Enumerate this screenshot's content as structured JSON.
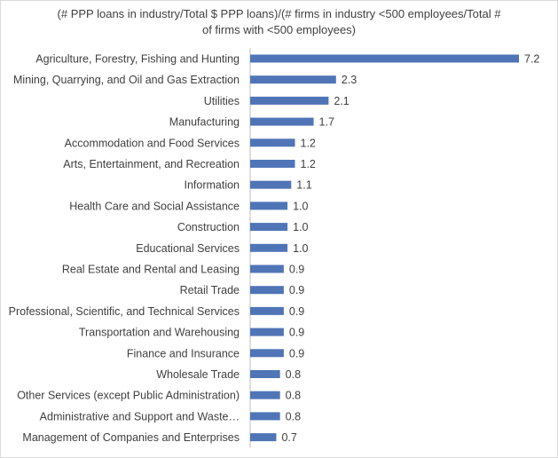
{
  "chart_data": {
    "type": "bar",
    "orientation": "horizontal",
    "title_line_1": "(# PPP loans in industry/Total $ PPP loans)/(# firms in industry <500 employees/Total #",
    "title_line_2": "of firms with <500 employees)",
    "categories": [
      "Agriculture, Forestry, Fishing and Hunting",
      "Mining, Quarrying, and Oil and Gas Extraction",
      "Utilities",
      "Manufacturing",
      "Accommodation and Food Services",
      "Arts, Entertainment, and Recreation",
      "Information",
      "Health Care and Social Assistance",
      "Construction",
      "Educational Services",
      "Real Estate and Rental and Leasing",
      "Retail Trade",
      "Professional, Scientific, and Technical Services",
      "Transportation and Warehousing",
      "Finance and Insurance",
      "Wholesale Trade",
      "Other Services (except Public Administration)",
      "Administrative and Support and Waste…",
      "Management of Companies and Enterprises"
    ],
    "values": [
      7.2,
      2.3,
      2.1,
      1.7,
      1.2,
      1.2,
      1.1,
      1.0,
      1.0,
      1.0,
      0.9,
      0.9,
      0.9,
      0.9,
      0.9,
      0.8,
      0.8,
      0.8,
      0.7
    ],
    "value_labels": [
      "7.2",
      "2.3",
      "2.1",
      "1.7",
      "1.2",
      "1.2",
      "1.1",
      "1.0",
      "1.0",
      "1.0",
      "0.9",
      "0.9",
      "0.9",
      "0.9",
      "0.9",
      "0.8",
      "0.8",
      "0.8",
      "0.7"
    ],
    "xlim": [
      0,
      7.2
    ],
    "grid": false,
    "legend": "none",
    "colors": {
      "bar": "#4f75b7",
      "text": "#404040",
      "axis": "#bfbfbf"
    }
  }
}
